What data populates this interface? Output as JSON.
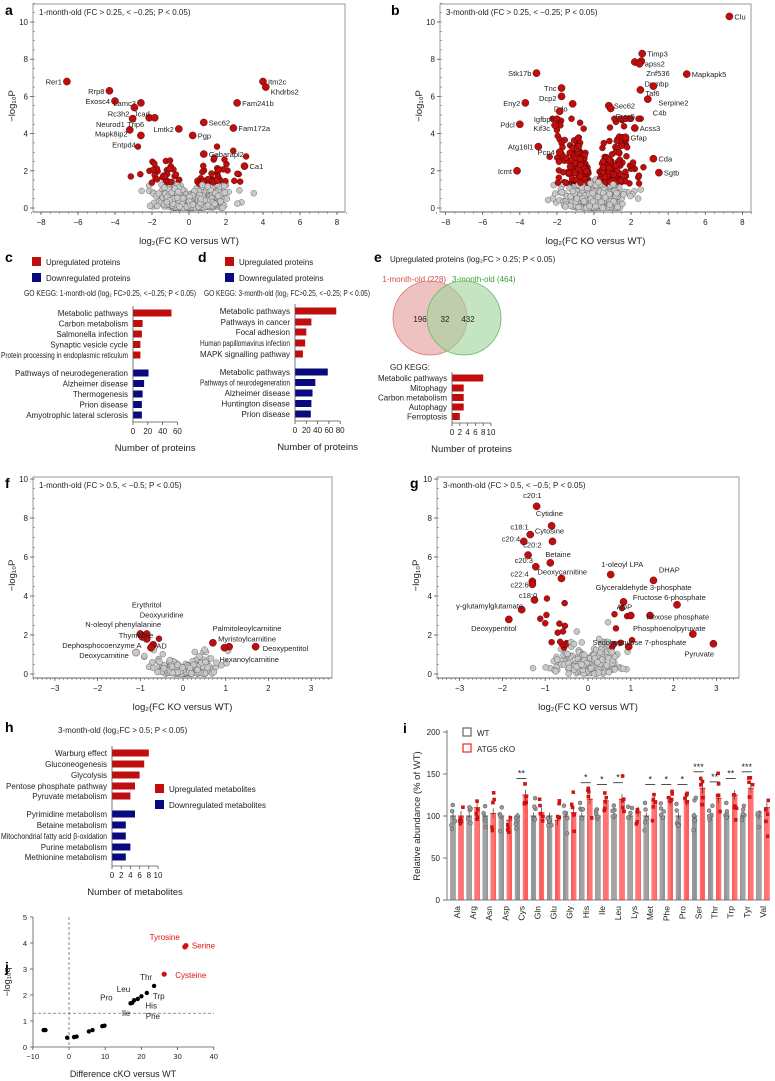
{
  "colors": {
    "up": "#c00d0d",
    "down": "#0a0a80",
    "gray_point": "#c8c8c8",
    "wt": "#666666",
    "cko": "#ff1a1a",
    "venn_1m": "#e49a9a",
    "venn_3m": "#9fd49a",
    "venn_1m_text": "#d44a4a",
    "venn_3m_text": "#3aa030"
  },
  "axis_labels": {
    "volcano_x": "log₂(FC KO versus WT)",
    "volcano_y": "−log₁₀P",
    "num_proteins": "Number of proteins",
    "num_metabolites": "Number of metabolites"
  },
  "chart_data": [
    {
      "panel": "a",
      "type": "scatter",
      "title": "1-month-old (FC > 0.25, < −0.25; P < 0.05)",
      "xlim": [
        -8.5,
        8.5
      ],
      "ylim": [
        0,
        11
      ],
      "xticks": [
        -8,
        -6,
        -4,
        -2,
        0,
        2,
        4,
        6,
        8
      ],
      "yticks": [
        0,
        2,
        4,
        6,
        8,
        10
      ],
      "fc_threshold": 0.25,
      "p_threshold_log": 1.3,
      "labeled_points": [
        {
          "label": "Rer1",
          "x": -6.6,
          "y": 6.8
        },
        {
          "label": "Rrp8",
          "x": -4.3,
          "y": 6.3
        },
        {
          "label": "Exosc4",
          "x": -4.0,
          "y": 5.75
        },
        {
          "label": "Lamc3",
          "x": -2.6,
          "y": 5.65
        },
        {
          "label": "Rc3h2",
          "x": -2.95,
          "y": 5.4
        },
        {
          "label": "Trip6",
          "x": -2.15,
          "y": 4.85
        },
        {
          "label": "Jcad",
          "x": -1.85,
          "y": 4.85
        },
        {
          "label": "Mapk8ip2",
          "x": -3.05,
          "y": 4.8
        },
        {
          "label": "Neurod1",
          "x": -3.2,
          "y": 4.2
        },
        {
          "label": "Lmtk2",
          "x": -0.55,
          "y": 4.25
        },
        {
          "label": "Entpd4",
          "x": -2.6,
          "y": 3.9
        },
        {
          "label": "Sec62",
          "x": 0.8,
          "y": 4.6
        },
        {
          "label": "Pgp",
          "x": 0.2,
          "y": 3.9
        },
        {
          "label": "Gabarapl2",
          "x": 0.8,
          "y": 2.9
        },
        {
          "label": "Ca1",
          "x": 3.0,
          "y": 2.25
        },
        {
          "label": "Itm2c",
          "x": 4.0,
          "y": 6.8
        },
        {
          "label": "Khdrbs2",
          "x": 4.15,
          "y": 6.5
        },
        {
          "label": "Fam241b",
          "x": 2.6,
          "y": 5.65
        },
        {
          "label": "Fam172a",
          "x": 2.4,
          "y": 4.3
        }
      ]
    },
    {
      "panel": "b",
      "type": "scatter",
      "title": "3-month-old (FC > 0.25, < −0.25; P < 0.05)",
      "xlim": [
        -8.5,
        8.5
      ],
      "ylim": [
        0,
        11
      ],
      "xticks": [
        -8,
        -6,
        -4,
        -2,
        0,
        2,
        4,
        6,
        8
      ],
      "yticks": [
        0,
        2,
        4,
        6,
        8,
        10
      ],
      "fc_threshold": 0.25,
      "p_threshold_log": 1.3,
      "labeled_points": [
        {
          "label": "Clu",
          "x": 7.3,
          "y": 10.3
        },
        {
          "label": "Timp3",
          "x": 2.6,
          "y": 8.3
        },
        {
          "label": "Papss2",
          "x": 2.2,
          "y": 7.85
        },
        {
          "label": "Znf536",
          "x": 2.55,
          "y": 7.9
        },
        {
          "label": "Dnmbp",
          "x": 2.45,
          "y": 7.75
        },
        {
          "label": "Mapkapk5",
          "x": 5.0,
          "y": 7.2
        },
        {
          "label": "Taf6",
          "x": 2.5,
          "y": 6.35
        },
        {
          "label": "Serpine2",
          "x": 3.2,
          "y": 6.55
        },
        {
          "label": "C4b",
          "x": 2.9,
          "y": 5.85
        },
        {
          "label": "Sec62",
          "x": 0.8,
          "y": 5.5
        },
        {
          "label": "Ercc5",
          "x": 0.9,
          "y": 5.35
        },
        {
          "label": "Acss3",
          "x": 2.2,
          "y": 4.3
        },
        {
          "label": "Gfap",
          "x": 1.7,
          "y": 3.8
        },
        {
          "label": "Cda",
          "x": 3.2,
          "y": 2.65
        },
        {
          "label": "Sgtb",
          "x": 3.5,
          "y": 1.9
        },
        {
          "label": "Stk17b",
          "x": -3.1,
          "y": 7.25
        },
        {
          "label": "Tnc",
          "x": -1.75,
          "y": 6.45
        },
        {
          "label": "Dcp2",
          "x": -1.75,
          "y": 6.0
        },
        {
          "label": "Ddo",
          "x": -1.15,
          "y": 5.6
        },
        {
          "label": "Eny2",
          "x": -3.7,
          "y": 5.65
        },
        {
          "label": "Igfbp5",
          "x": -1.85,
          "y": 5.2
        },
        {
          "label": "Kif3c",
          "x": -2.1,
          "y": 4.45
        },
        {
          "label": "Pdcl",
          "x": -4.0,
          "y": 4.5
        },
        {
          "label": "Pcp4",
          "x": -1.85,
          "y": 3.0
        },
        {
          "label": "Atg16l1",
          "x": -3.0,
          "y": 3.3
        },
        {
          "label": "Icmt",
          "x": -4.15,
          "y": 2.0
        }
      ]
    },
    {
      "panel": "c",
      "type": "bar",
      "legend": [
        "Upregulated proteins",
        "Downregulated proteins"
      ],
      "title": "GO KEGG: 1-month-old (log₂ FC>0.25, <−0.25; P < 0.05)",
      "xlabel": "Number of proteins",
      "xlim": [
        0,
        60
      ],
      "xticks": [
        0,
        20,
        40,
        60
      ],
      "up": {
        "categories": [
          "Metabolic pathways",
          "Carbon metabolism",
          "Salmonella infection",
          "Synaptic vesicle cycle",
          "Protein processing in endoplasmic reticulum"
        ],
        "values": [
          52,
          13,
          12,
          10,
          10
        ]
      },
      "down": {
        "categories": [
          "Pathways of neurodegeneration",
          "Alzheimer disease",
          "Thermogenesis",
          "Prion disease",
          "Amyotrophic lateral sclerosis"
        ],
        "values": [
          21,
          15,
          13,
          12,
          12
        ]
      }
    },
    {
      "panel": "d",
      "type": "bar",
      "legend": [
        "Upregulated proteins",
        "Downregulated proteins"
      ],
      "title": "GO KEGG: 3-month-old (log₂ FC>0.25, <−0.25; P < 0.05)",
      "xlabel": "Number of proteins",
      "xlim": [
        0,
        80
      ],
      "xticks": [
        0,
        20,
        40,
        60,
        80
      ],
      "up": {
        "categories": [
          "Metabolic pathways",
          "Pathways in cancer",
          "Focal adhesion",
          "Human papillomavirus infection",
          "MAPK signalling pathway"
        ],
        "values": [
          73,
          29,
          20,
          18,
          14
        ]
      },
      "down": {
        "categories": [
          "Metabolic pathways",
          "Pathways of neurodegeneration",
          "Alzheimer disease",
          "Huntington disease",
          "Prion disease"
        ],
        "values": [
          58,
          36,
          31,
          29,
          28
        ]
      }
    },
    {
      "panel": "e",
      "type": "venn",
      "title": "Upregulated proteins (log₂FC > 0.25; P < 0.05)",
      "sets": [
        {
          "name": "1-month-old (228)",
          "only": 196
        },
        {
          "name": "3-month-old (464)",
          "only": 432
        }
      ],
      "overlap": 32,
      "kegg": {
        "title": "GO KEGG:",
        "type": "bar",
        "xlabel": "Number of proteins",
        "xlim": [
          0,
          10
        ],
        "xticks": [
          0,
          2,
          4,
          6,
          8,
          10
        ],
        "categories": [
          "Metabolic pathways",
          "Mitophagy",
          "Carbon metabolism",
          "Autophagy",
          "Ferroptosis"
        ],
        "values": [
          8,
          3,
          3,
          3,
          2
        ]
      }
    },
    {
      "panel": "f",
      "type": "scatter",
      "title": "1-month-old (FC > 0.5, < −0.5; P < 0.05)",
      "xlim": [
        -3.5,
        3.5
      ],
      "ylim": [
        0,
        10
      ],
      "xticks": [
        -3,
        -2,
        -1,
        0,
        1,
        2,
        3
      ],
      "yticks": [
        0,
        2,
        4,
        6,
        8,
        10
      ],
      "fc_threshold": 0.5,
      "p_threshold_log": 1.3,
      "labeled_points": [
        {
          "label": "Erythritol",
          "x": -0.85,
          "y": 2.05,
          "sig": true,
          "lx": -0.85,
          "ly": 3.4
        },
        {
          "label": "Deoxyuridine",
          "x": -0.85,
          "y": 1.8,
          "sig": true,
          "lx": -0.5,
          "ly": 2.9
        },
        {
          "label": "N-oleoyl phenylalanine",
          "x": -1.0,
          "y": 2.05,
          "sig": true,
          "lx": -1.4,
          "ly": 2.4
        },
        {
          "label": "Thymidine",
          "x": -0.95,
          "y": 1.9,
          "sig": true,
          "lx": -1.1,
          "ly": 1.85
        },
        {
          "label": "FAD",
          "x": -0.7,
          "y": 1.5,
          "sig": true,
          "lx": -0.55,
          "ly": 1.85
        },
        {
          "label": "Dephosphocoenzyme A",
          "x": -0.75,
          "y": 1.35,
          "sig": true,
          "lx": -1.9,
          "ly": 1.5
        },
        {
          "label": "Deoxycarnitine",
          "x": -1.1,
          "y": 1.1,
          "sig": false,
          "lx": -1.85,
          "ly": 0.9
        },
        {
          "label": "Palmitoleoylcarnitine",
          "x": 0.7,
          "y": 1.6,
          "sig": true,
          "lx": 1.5,
          "ly": 2.2
        },
        {
          "label": "Myristoylcarnitine",
          "x": 1.08,
          "y": 1.4,
          "sig": true,
          "lx": 1.5,
          "ly": 1.75
        },
        {
          "label": "Deoxypentitol",
          "x": 1.7,
          "y": 1.4,
          "sig": true,
          "lx": 2.4,
          "ly": 1.4
        },
        {
          "label": "Hexanoylcarnitine",
          "x": 0.97,
          "y": 1.35,
          "sig": true,
          "lx": 1.55,
          "ly": 0.85
        }
      ]
    },
    {
      "panel": "g",
      "type": "scatter",
      "title": "3-month-old (FC > 0.5, < −0.5; P < 0.05)",
      "xlim": [
        -3.5,
        3.5
      ],
      "ylim": [
        0,
        10
      ],
      "xticks": [
        -3,
        -2,
        -1,
        0,
        1,
        2,
        3
      ],
      "yticks": [
        0,
        2,
        4,
        6,
        8,
        10
      ],
      "fc_threshold": 0.5,
      "p_threshold_log": 1.3,
      "labeled_points": [
        {
          "label": "c20:1",
          "x": -1.2,
          "y": 8.6,
          "lx": -1.3,
          "ly": 9.1
        },
        {
          "label": "Cytidine",
          "x": -0.85,
          "y": 7.6,
          "lx": -0.9,
          "ly": 8.1
        },
        {
          "label": "c18:1",
          "x": -1.35,
          "y": 7.15,
          "lx": -1.6,
          "ly": 7.4
        },
        {
          "label": "Cytosine",
          "x": -0.83,
          "y": 6.8,
          "lx": -0.9,
          "ly": 7.2
        },
        {
          "label": "c20:4",
          "x": -1.5,
          "y": 6.8,
          "lx": -1.8,
          "ly": 6.8
        },
        {
          "label": "c20:2",
          "x": -1.4,
          "y": 6.1,
          "lx": -1.3,
          "ly": 6.5
        },
        {
          "label": "Betaine",
          "x": -0.88,
          "y": 5.7,
          "lx": -0.7,
          "ly": 6.0
        },
        {
          "label": "c20:3",
          "x": -1.22,
          "y": 5.5,
          "lx": -1.5,
          "ly": 5.7
        },
        {
          "label": "Deoxycarnitine",
          "x": -0.62,
          "y": 4.9,
          "lx": -0.6,
          "ly": 5.1
        },
        {
          "label": "c22:4",
          "x": -1.3,
          "y": 4.75,
          "lx": -1.6,
          "ly": 5.0
        },
        {
          "label": "c22:6",
          "x": -1.3,
          "y": 4.6,
          "lx": -1.6,
          "ly": 4.6
        },
        {
          "label": "c18:0",
          "x": -1.25,
          "y": 3.8,
          "lx": -1.4,
          "ly": 4.2
        },
        {
          "label": "γ-glutamylglutamate",
          "x": -1.55,
          "y": 3.3,
          "lx": -2.3,
          "ly": 3.6
        },
        {
          "label": "Deoxypentitol",
          "x": -1.85,
          "y": 2.8,
          "lx": -2.2,
          "ly": 2.2
        },
        {
          "label": "1-oleoyl LPA",
          "x": 0.53,
          "y": 5.1,
          "lx": 0.8,
          "ly": 5.5
        },
        {
          "label": "DHAP",
          "x": 1.53,
          "y": 4.8,
          "lx": 1.9,
          "ly": 5.2
        },
        {
          "label": "Glyceraldehyde 3-phosphate",
          "x": 0.83,
          "y": 3.7,
          "lx": 1.3,
          "ly": 4.3
        },
        {
          "label": "Fructose 6-phosphate",
          "x": 2.08,
          "y": 3.55,
          "lx": 1.9,
          "ly": 3.8
        },
        {
          "label": "ADP",
          "x": 1.0,
          "y": 3.0,
          "lx": 0.85,
          "ly": 3.3
        },
        {
          "label": "Hexose phosphate",
          "x": 1.45,
          "y": 3.0,
          "lx": 2.1,
          "ly": 2.8
        },
        {
          "label": "Phosphoenolpyruvate",
          "x": 2.45,
          "y": 2.05,
          "lx": 1.9,
          "ly": 2.2
        },
        {
          "label": "Sedoheptulose 7-phosphate",
          "x": 0.95,
          "y": 1.4,
          "lx": 1.2,
          "ly": 1.5
        },
        {
          "label": "Pyruvate",
          "x": 2.93,
          "y": 1.55,
          "lx": 2.6,
          "ly": 0.9
        }
      ]
    },
    {
      "panel": "h",
      "type": "bar",
      "title": "3-month-old (log₂FC > 0.5; P < 0.05)",
      "legend": [
        "Upregulated metabolites",
        "Downregulated metabolites"
      ],
      "xlabel": "Number of metabolites",
      "xlim": [
        0,
        10
      ],
      "xticks": [
        0,
        2,
        4,
        6,
        8,
        10
      ],
      "up": {
        "categories": [
          "Warburg effect",
          "Gluconeogenesis",
          "Glycolysis",
          "Pentose phosphate pathway",
          "Pyruvate metabolism"
        ],
        "values": [
          8,
          7,
          6,
          5,
          4
        ]
      },
      "down": {
        "categories": [
          "Pyrimidine metabolism",
          "Betaine metabolism",
          "Mitochondrial fatty acid β-oxidation",
          "Purine metabolism",
          "Methionine metabolism"
        ],
        "values": [
          5,
          3,
          3,
          4,
          3
        ]
      }
    },
    {
      "panel": "i",
      "type": "bar",
      "ylabel": "Relative abundance (% of WT)",
      "ylim": [
        0,
        200
      ],
      "yticks": [
        0,
        50,
        100,
        150,
        200
      ],
      "legend": [
        "WT",
        "ATG5 cKO"
      ],
      "categories": [
        "Ala",
        "Arg",
        "Asn",
        "Asp",
        "Cys",
        "Gln",
        "Glu",
        "Gly",
        "His",
        "Ile",
        "Leu",
        "Lys",
        "Met",
        "Phe",
        "Pro",
        "Ser",
        "Thr",
        "Trp",
        "Tyr",
        "Val"
      ],
      "series": [
        {
          "name": "WT",
          "values": [
            100,
            100,
            100,
            100,
            100,
            100,
            100,
            100,
            100,
            100,
            100,
            100,
            100,
            100,
            100,
            100,
            100,
            100,
            100,
            100
          ]
        },
        {
          "name": "ATG5 cKO",
          "values": [
            100,
            110,
            103,
            95,
            125,
            104,
            95,
            104,
            120,
            118,
            120,
            105,
            118,
            118,
            118,
            133,
            121,
            125,
            133,
            110
          ]
        }
      ],
      "significance": [
        "",
        "",
        "",
        "",
        "**",
        "",
        "",
        "",
        "*",
        "*",
        "*",
        "",
        "*",
        "*",
        "*",
        "***",
        "**",
        "**",
        "***",
        ""
      ]
    },
    {
      "panel": "j",
      "type": "scatter",
      "xlabel": "Difference cKO versus WT",
      "ylabel": "−log₁₀q",
      "xlim": [
        -10,
        40
      ],
      "ylim": [
        0,
        5
      ],
      "xticks": [
        -10,
        0,
        10,
        20,
        30,
        40
      ],
      "yticks": [
        0,
        1,
        2,
        3,
        4,
        5
      ],
      "threshold_y": 1.3,
      "points": [
        {
          "label": "Tyrosine",
          "x": 32,
          "y": 3.85,
          "highlight": true
        },
        {
          "label": "Serine",
          "x": 32.3,
          "y": 3.9,
          "highlight": true
        },
        {
          "label": "Cysteine",
          "x": 26.3,
          "y": 2.8,
          "highlight": true
        },
        {
          "label": "Thr",
          "x": 23.5,
          "y": 2.35
        },
        {
          "label": "Trp",
          "x": 21.5,
          "y": 2.08
        },
        {
          "label": "His",
          "x": 20,
          "y": 1.95
        },
        {
          "label": "Phe",
          "x": 19,
          "y": 1.85
        },
        {
          "label": "Leu",
          "x": 18,
          "y": 1.8
        },
        {
          "label": "Ile",
          "x": 17.5,
          "y": 1.7
        },
        {
          "label": "Pro",
          "x": 17,
          "y": 1.68
        },
        {
          "label": "",
          "x": -7,
          "y": 0.65
        },
        {
          "label": "",
          "x": -6.5,
          "y": 0.65
        },
        {
          "label": "",
          "x": -0.5,
          "y": 0.36
        },
        {
          "label": "",
          "x": 1.4,
          "y": 0.38
        },
        {
          "label": "",
          "x": 2.1,
          "y": 0.4
        },
        {
          "label": "",
          "x": 5.5,
          "y": 0.6
        },
        {
          "label": "",
          "x": 6.5,
          "y": 0.65
        },
        {
          "label": "",
          "x": 9.2,
          "y": 0.8
        },
        {
          "label": "",
          "x": 9.8,
          "y": 0.82
        }
      ]
    }
  ]
}
